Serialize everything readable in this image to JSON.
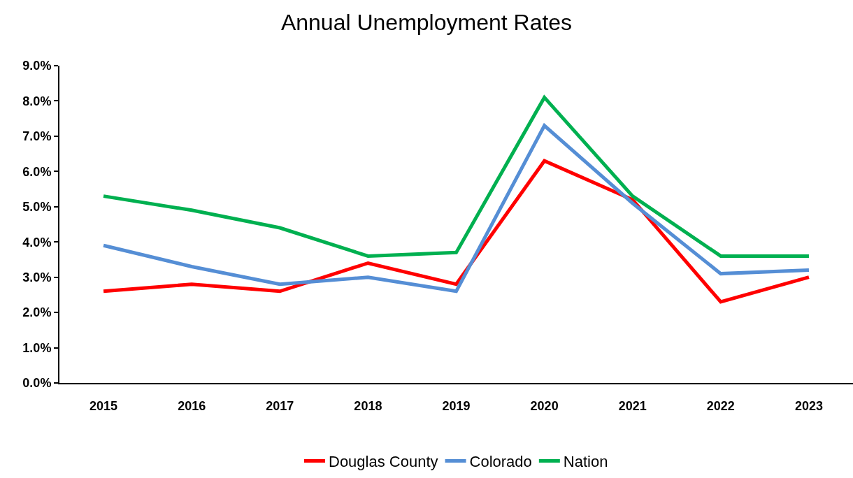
{
  "chart_data": {
    "type": "line",
    "title": "Annual Unemployment Rates",
    "categories": [
      "2015",
      "2016",
      "2017",
      "2018",
      "2019",
      "2020",
      "2021",
      "2022",
      "2023"
    ],
    "series": [
      {
        "name": "Douglas County",
        "color": "#ff0000",
        "values": [
          2.6,
          2.8,
          2.6,
          3.4,
          2.8,
          6.3,
          5.2,
          2.3,
          3.0
        ]
      },
      {
        "name": "Colorado",
        "color": "#558ed5",
        "values": [
          3.9,
          3.3,
          2.8,
          3.0,
          2.6,
          7.3,
          5.1,
          3.1,
          3.2
        ]
      },
      {
        "name": "Nation",
        "color": "#00b050",
        "values": [
          5.3,
          4.9,
          4.4,
          3.6,
          3.7,
          8.1,
          5.3,
          3.6,
          3.6
        ]
      }
    ],
    "ylim": [
      0,
      9
    ],
    "yticks": [
      {
        "value": 0,
        "label": "0.0%"
      },
      {
        "value": 1,
        "label": "1.0%"
      },
      {
        "value": 2,
        "label": "2.0%"
      },
      {
        "value": 3,
        "label": "3.0%"
      },
      {
        "value": 4,
        "label": "4.0%"
      },
      {
        "value": 5,
        "label": "5.0%"
      },
      {
        "value": 6,
        "label": "6.0%"
      },
      {
        "value": 7,
        "label": "7.0%"
      },
      {
        "value": 8,
        "label": "8.0%"
      },
      {
        "value": 9,
        "label": "9.0%"
      }
    ],
    "legend": "bottom",
    "marker": "none",
    "line_style": "solid"
  }
}
